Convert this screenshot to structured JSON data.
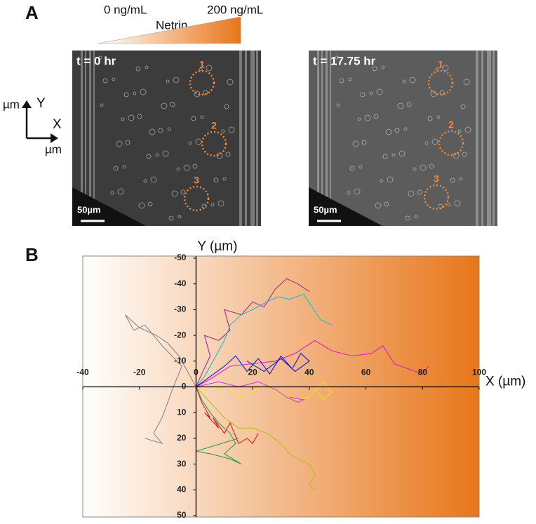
{
  "panel_a": {
    "label": "A",
    "gradient_labels": {
      "low": "0 ng/mL",
      "name": "Netrin",
      "high": "200 ng/mL"
    },
    "axes_glyph": {
      "y_unit": "µm",
      "y": "Y",
      "x": "X",
      "x_unit": "µm"
    },
    "images": [
      {
        "time": "t = 0 hr",
        "markers": [
          "1",
          "2",
          "3"
        ],
        "scale_bar": "50µm"
      },
      {
        "time": "t = 17.75 hr",
        "markers": [
          "1",
          "2",
          "3"
        ],
        "scale_bar": "50µm"
      }
    ]
  },
  "panel_b": {
    "label": "B"
  },
  "chart_data": {
    "type": "line",
    "x_label": "X (µm)",
    "y_label": "Y (µm)",
    "xlim": [
      -40,
      100
    ],
    "xticks": [
      -40,
      -20,
      0,
      20,
      40,
      60,
      80,
      100
    ],
    "ylim": [
      -50,
      50
    ],
    "yticks": [
      -50,
      -40,
      -30,
      -20,
      -10,
      0,
      10,
      20,
      30,
      40,
      50
    ],
    "y_inverted": true,
    "background_gradient": [
      "#ffffff",
      "#e8761a"
    ],
    "series": [
      {
        "color": "#a0307f",
        "x": [
          0,
          2,
          5,
          3,
          8,
          12,
          10,
          16,
          20,
          24,
          28,
          32,
          36,
          40
        ],
        "values": [
          0,
          -5,
          -12,
          -20,
          -18,
          -22,
          -30,
          -28,
          -33,
          -31,
          -38,
          -42,
          -40,
          -37
        ]
      },
      {
        "color": "#2ab5d0",
        "x": [
          0,
          3,
          6,
          10,
          12,
          16,
          20,
          25,
          29,
          33,
          38,
          41,
          44,
          48
        ],
        "values": [
          0,
          -4,
          -10,
          -18,
          -24,
          -28,
          -30,
          -33,
          -35,
          -34,
          -36,
          -31,
          -26,
          -24
        ]
      },
      {
        "color": "#e020c0",
        "x": [
          0,
          5,
          12,
          20,
          28,
          35,
          42,
          48,
          55,
          62,
          66,
          70,
          75,
          80,
          82
        ],
        "values": [
          0,
          -3,
          -8,
          -9,
          -10,
          -13,
          -18,
          -14,
          -12,
          -13,
          -16,
          -9,
          -7,
          -5,
          -8
        ]
      },
      {
        "color": "#1a1ad0",
        "x": [
          0,
          5,
          10,
          14,
          18,
          22,
          26,
          30,
          34,
          37,
          40,
          35,
          30,
          24,
          18
        ],
        "values": [
          0,
          -4,
          -8,
          -12,
          -6,
          -11,
          -5,
          -12,
          -7,
          -13,
          -10,
          -6,
          -11,
          -6,
          -10
        ]
      },
      {
        "color": "#8a8a8a",
        "x": [
          0,
          -3,
          -6,
          -10,
          -14,
          -20,
          -25,
          -22,
          -18,
          -12,
          -5,
          -8,
          -10,
          -12,
          -15,
          -12,
          -18
        ],
        "values": [
          0,
          -6,
          -12,
          -17,
          -20,
          -23,
          -28,
          -22,
          -24,
          -16,
          -8,
          0,
          6,
          12,
          18,
          22,
          20
        ]
      },
      {
        "color": "#f0e020",
        "x": [
          0,
          5,
          10,
          15,
          20,
          25,
          30,
          35,
          40,
          45,
          48,
          45,
          42
        ],
        "values": [
          0,
          2,
          0,
          4,
          2,
          -1,
          3,
          5,
          4,
          -2,
          2,
          5,
          1
        ]
      },
      {
        "color": "#d040d0",
        "x": [
          0,
          8,
          15,
          22,
          28,
          32,
          36,
          38,
          33
        ],
        "values": [
          0,
          -2,
          0,
          -2,
          1,
          4,
          6,
          5,
          4
        ]
      },
      {
        "color": "#b0c020",
        "x": [
          0,
          5,
          10,
          15,
          20,
          25,
          30,
          33,
          36,
          40,
          42,
          40,
          42
        ],
        "values": [
          0,
          6,
          12,
          16,
          16,
          18,
          22,
          26,
          28,
          30,
          34,
          38,
          40
        ]
      },
      {
        "color": "#30a040",
        "x": [
          0,
          2,
          5,
          8,
          12,
          14,
          10,
          16,
          12,
          5,
          0,
          15
        ],
        "values": [
          0,
          5,
          10,
          14,
          18,
          22,
          26,
          30,
          28,
          26,
          25,
          20
        ]
      },
      {
        "color": "#e02020",
        "x": [
          0,
          2,
          5,
          3,
          8,
          6,
          10,
          12,
          15,
          18,
          20,
          22
        ],
        "values": [
          0,
          6,
          12,
          10,
          16,
          12,
          18,
          14,
          22,
          20,
          22,
          18
        ]
      }
    ]
  }
}
